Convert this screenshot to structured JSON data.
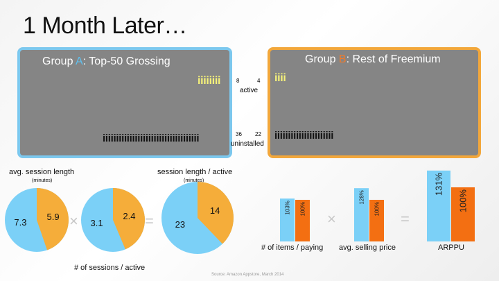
{
  "title": "1 Month Later…",
  "groupA": {
    "prefix": "Group ",
    "letter": "A",
    "suffix": ":  Top-50 Grossing",
    "active_icons": "iiiiiiii",
    "uninstalled_icons": "iiiiiiiiiiiiiiiiiiiiiiiiiiiiiiiiiiii"
  },
  "groupB": {
    "prefix": "Group ",
    "letter": "B",
    "suffix": ":  Rest of Freemium",
    "active_icons": "iiii",
    "uninstalled_icons": "iiiiiiiiiiiiiiiiiiiiii"
  },
  "middle": {
    "active_a": "8",
    "active_b": "4",
    "active_label": "active",
    "uninstalled_a": "36",
    "uninstalled_b": "22",
    "uninstalled_label": "uninstalled"
  },
  "session": {
    "avg_label": "avg. session length",
    "avg_unit": "(minutes)",
    "sessions_label": "# of sessions / active",
    "result_label": "session length / active",
    "result_unit": "(minutes)",
    "times": "×",
    "equals": "="
  },
  "colors": {
    "blue": "#7bd0f7",
    "orange": "#f5ad3a",
    "bar_orange": "#f36f12",
    "box_a": "#7cc8ee",
    "box_b": "#f2a73b"
  },
  "chart_data": [
    {
      "type": "pie",
      "name": "avg. session length (minutes)",
      "labels": [
        "A",
        "B"
      ],
      "values": [
        7.3,
        5.9
      ],
      "value_labels": [
        "7.3",
        "5.9"
      ]
    },
    {
      "type": "pie",
      "name": "# of sessions / active",
      "labels": [
        "A",
        "B"
      ],
      "values": [
        3.1,
        2.4
      ],
      "value_labels": [
        "3.1",
        "2.4"
      ]
    },
    {
      "type": "pie",
      "name": "session length / active (minutes)",
      "labels": [
        "A",
        "B"
      ],
      "values": [
        23,
        14
      ],
      "value_labels": [
        "23",
        "14"
      ]
    },
    {
      "type": "bar",
      "name": "# of items / paying",
      "categories": [
        "A",
        "B"
      ],
      "values": [
        103,
        100
      ],
      "value_labels": [
        "103%",
        "100%"
      ]
    },
    {
      "type": "bar",
      "name": "avg. selling price",
      "categories": [
        "A",
        "B"
      ],
      "values": [
        128,
        100
      ],
      "value_labels": [
        "128%",
        "100%"
      ]
    },
    {
      "type": "bar",
      "name": "ARPPU",
      "categories": [
        "A",
        "B"
      ],
      "values": [
        131,
        100
      ],
      "value_labels": [
        "131%",
        "100%"
      ]
    }
  ],
  "bars": {
    "items_label": "# of items / paying",
    "price_label": "avg. selling price",
    "arppu_label": "ARPPU",
    "times": "×",
    "equals": "="
  },
  "source": "Source:  Amazon Appstore, March 2014"
}
